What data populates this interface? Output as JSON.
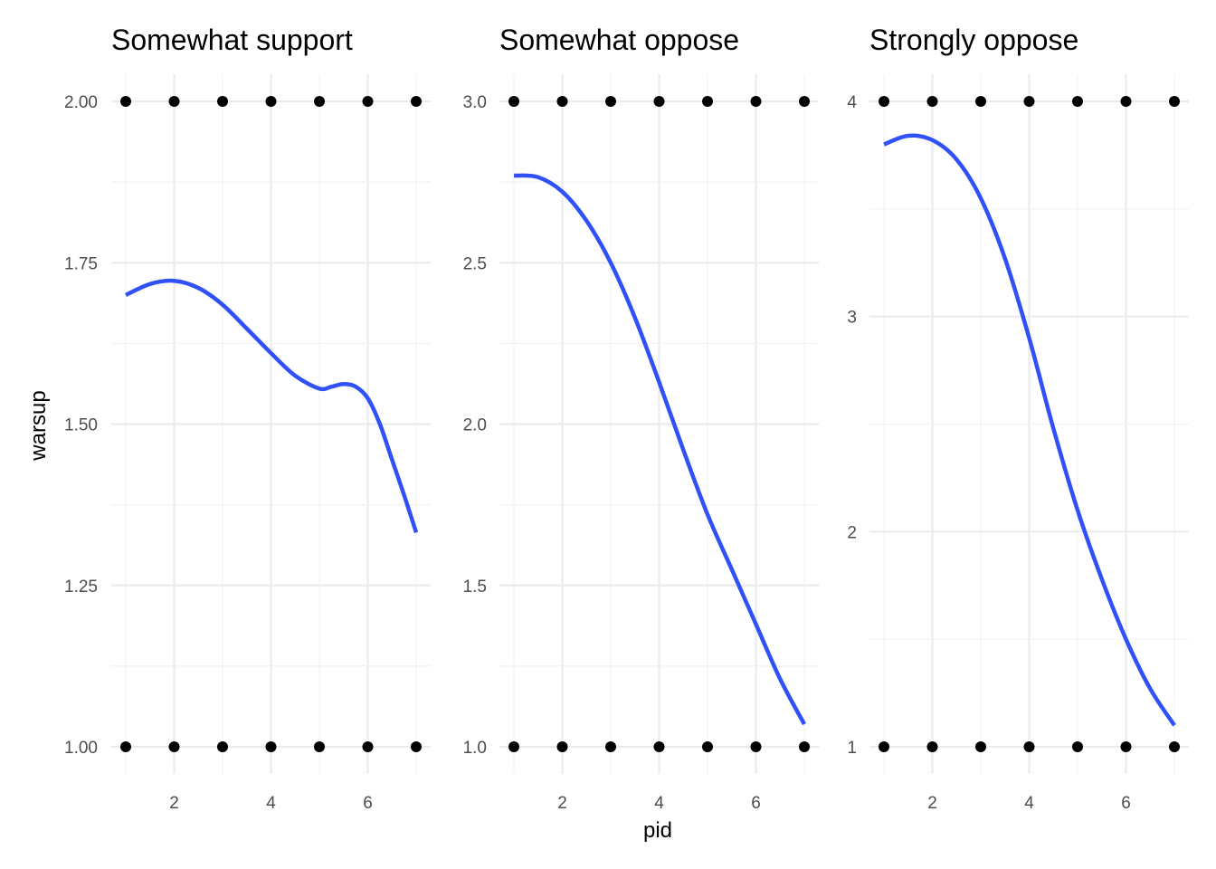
{
  "chart_data": {
    "type": "scatter",
    "xlabel": "pid",
    "ylabel": "warsup",
    "xlim": [
      1,
      7
    ],
    "x_ticks": [
      2,
      4,
      6
    ],
    "grid": true,
    "legend": "none",
    "line_color": "#3050f8",
    "point_color": "#000000",
    "panels": [
      {
        "title": "Somewhat support",
        "ylim": [
          1,
          2
        ],
        "y_ticks": [
          1.0,
          1.25,
          1.5,
          1.75,
          2.0
        ],
        "y_tick_labels": [
          "1.00",
          "1.25",
          "1.50",
          "1.75",
          "2.00"
        ],
        "points": {
          "x": [
            1,
            2,
            3,
            4,
            5,
            6,
            7,
            1,
            2,
            3,
            4,
            5,
            6,
            7
          ],
          "y": [
            2,
            2,
            2,
            2,
            2,
            2,
            2,
            1,
            1,
            1,
            1,
            1,
            1,
            1
          ]
        },
        "smooth": {
          "x": [
            1,
            1.5,
            2,
            2.5,
            3,
            3.5,
            4,
            4.5,
            5,
            5.25,
            5.5,
            5.75,
            6,
            6.25,
            6.5,
            6.75,
            7
          ],
          "y": [
            1.7,
            1.717,
            1.722,
            1.711,
            1.685,
            1.648,
            1.61,
            1.575,
            1.555,
            1.558,
            1.562,
            1.558,
            1.54,
            1.5,
            1.445,
            1.39,
            1.332
          ]
        }
      },
      {
        "title": "Somewhat oppose",
        "ylim": [
          1,
          3
        ],
        "y_ticks": [
          1.0,
          1.5,
          2.0,
          2.5,
          3.0
        ],
        "y_tick_labels": [
          "1.0",
          "1.5",
          "2.0",
          "2.5",
          "3.0"
        ],
        "points": {
          "x": [
            1,
            2,
            3,
            4,
            5,
            6,
            7,
            1,
            2,
            3,
            4,
            5,
            6,
            7
          ],
          "y": [
            3,
            3,
            3,
            3,
            3,
            3,
            3,
            1,
            1,
            1,
            1,
            1,
            1,
            1
          ]
        },
        "smooth": {
          "x": [
            1,
            1.5,
            2,
            2.5,
            3,
            3.5,
            4,
            4.5,
            5,
            5.5,
            6,
            6.5,
            7
          ],
          "y": [
            2.77,
            2.765,
            2.72,
            2.63,
            2.5,
            2.33,
            2.13,
            1.92,
            1.72,
            1.55,
            1.38,
            1.21,
            1.07
          ]
        }
      },
      {
        "title": "Strongly oppose",
        "ylim": [
          1,
          4
        ],
        "y_ticks": [
          1,
          1.5,
          2,
          2.5,
          3,
          3.5,
          4
        ],
        "y_tick_labels": [
          "1",
          "",
          "2",
          "",
          "3",
          "",
          "4"
        ],
        "points": {
          "x": [
            1,
            2,
            3,
            4,
            5,
            6,
            7,
            1,
            2,
            3,
            4,
            5,
            6,
            7
          ],
          "y": [
            4,
            4,
            4,
            4,
            4,
            4,
            4,
            1,
            1,
            1,
            1,
            1,
            1,
            1
          ]
        },
        "smooth": {
          "x": [
            1,
            1.5,
            2,
            2.5,
            3,
            3.5,
            4,
            4.5,
            5,
            5.5,
            6,
            6.5,
            7
          ],
          "y": [
            3.8,
            3.84,
            3.82,
            3.73,
            3.55,
            3.27,
            2.9,
            2.48,
            2.1,
            1.78,
            1.5,
            1.27,
            1.1
          ]
        }
      }
    ]
  }
}
